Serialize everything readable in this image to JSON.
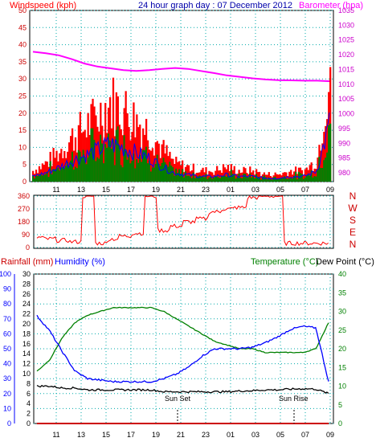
{
  "header": {
    "windspeed_label": "Windspeed (kph)",
    "title": "24 hour graph day : 07 December 2012",
    "barometer_label": "Barometer (hpa)"
  },
  "footer_labels": {
    "rainfall_label": "Rainfall (mm)",
    "humidity_label": "Humidity (%)",
    "temperature_label": "Temperature (°C)",
    "dewpoint_label": "Dew Point (°C)",
    "sunset_label": "Sun Set",
    "sunrise_label": "Sun Rise"
  },
  "colors": {
    "wind": "#ff0000",
    "gust_blue": "#0000ff",
    "avg_green": "#008000",
    "barometer": "#ff00ff",
    "direction": "#ff0000",
    "temperature": "#008000",
    "humidity": "#0000ff",
    "dewpoint": "#000000",
    "rainfall": "#cc0000",
    "grid": "#00aaaa"
  },
  "chart_data": [
    {
      "type": "line",
      "title": "24 hour graph day : 07 December 2012",
      "x_ticks": [
        "11",
        "13",
        "15",
        "17",
        "19",
        "21",
        "23",
        "01",
        "03",
        "05",
        "07",
        "09"
      ],
      "y_left": {
        "label": "Windspeed (kph)",
        "ticks": [
          0,
          5,
          10,
          15,
          20,
          25,
          30,
          35,
          40,
          45,
          50
        ],
        "range": [
          0,
          50
        ]
      },
      "y_right": {
        "label": "Barometer (hpa)",
        "ticks": [
          980,
          985,
          990,
          995,
          1000,
          1005,
          1010,
          1015,
          1020,
          1025,
          1030,
          1035
        ],
        "range": [
          977,
          1035
        ]
      },
      "series": [
        {
          "name": "Barometer",
          "unit": "hpa",
          "values": [
            1021,
            1020.5,
            1019.8,
            1018.5,
            1017,
            1016,
            1015.4,
            1014.8,
            1014.5,
            1014.8,
            1015.2,
            1015.5,
            1015.2,
            1014.5,
            1013.8,
            1013,
            1012.5,
            1012,
            1011.6,
            1011.4,
            1011.3,
            1011.2,
            1011.2,
            1011
          ]
        },
        {
          "name": "Windspeed",
          "unit": "kph",
          "values": [
            3,
            5,
            8,
            12,
            15,
            18,
            22,
            20,
            17,
            14,
            9,
            5,
            4,
            3,
            3,
            4,
            3,
            3,
            2,
            2,
            3,
            3,
            6,
            33
          ]
        }
      ]
    },
    {
      "type": "line",
      "x_ticks": [
        "11",
        "13",
        "15",
        "17",
        "19",
        "21",
        "23",
        "01",
        "03",
        "05",
        "07",
        "09"
      ],
      "y_left_ticks": [
        0,
        90,
        180,
        270,
        360
      ],
      "y_right_labels": [
        "N",
        "W",
        "S",
        "E",
        "N"
      ],
      "series": [
        {
          "name": "Wind direction",
          "unit": "deg",
          "values": [
            70,
            60,
            50,
            40,
            360,
            30,
            60,
            80,
            100,
            360,
            120,
            150,
            180,
            200,
            250,
            270,
            280,
            350,
            360,
            360,
            30,
            30,
            30,
            30
          ]
        }
      ]
    },
    {
      "type": "line",
      "x_ticks": [
        "11",
        "13",
        "15",
        "17",
        "19",
        "21",
        "23",
        "01",
        "03",
        "05",
        "07",
        "09"
      ],
      "y_left_rain": {
        "label": "Rainfall (mm)",
        "ticks": [
          0,
          2,
          4,
          6,
          8,
          10,
          12,
          14,
          16,
          18,
          20,
          22,
          24,
          26,
          28,
          30
        ]
      },
      "y_left_humidity": {
        "label": "Humidity (%)",
        "ticks": [
          0,
          10,
          20,
          30,
          40,
          50,
          60,
          70,
          80,
          90,
          100
        ]
      },
      "y_right": {
        "label": "Temperature (°C) / Dew Point (°C)",
        "ticks": [
          0,
          5,
          10,
          15,
          20,
          25,
          30,
          35,
          40
        ]
      },
      "annotations": [
        "Sun Set",
        "Sun Rise"
      ],
      "series": [
        {
          "name": "Temperature",
          "unit": "°C",
          "values": [
            14,
            17,
            23,
            27,
            29,
            30,
            31,
            31,
            31,
            31,
            30,
            28,
            26,
            24,
            22,
            21,
            20,
            20,
            19,
            19,
            19,
            19,
            20,
            27
          ]
        },
        {
          "name": "Humidity",
          "unit": "%",
          "values": [
            72,
            62,
            48,
            35,
            30,
            29,
            28,
            28,
            28,
            28,
            30,
            33,
            38,
            45,
            50,
            50,
            50,
            51,
            54,
            58,
            63,
            65,
            64,
            28
          ]
        },
        {
          "name": "Dew Point",
          "unit": "°C",
          "values": [
            10,
            10,
            9.5,
            9.5,
            9,
            9,
            9,
            9,
            9,
            9,
            8.5,
            8.5,
            8.5,
            8.5,
            8.5,
            8.5,
            8.7,
            8.8,
            9,
            9,
            9.2,
            9.3,
            9.2,
            8
          ]
        },
        {
          "name": "Rainfall",
          "unit": "mm",
          "values": [
            0,
            0,
            0,
            0,
            0,
            0,
            0,
            0,
            0,
            0,
            0,
            0,
            0,
            0,
            0,
            0,
            0,
            0,
            0,
            0,
            0,
            0,
            0,
            0
          ]
        }
      ]
    }
  ]
}
